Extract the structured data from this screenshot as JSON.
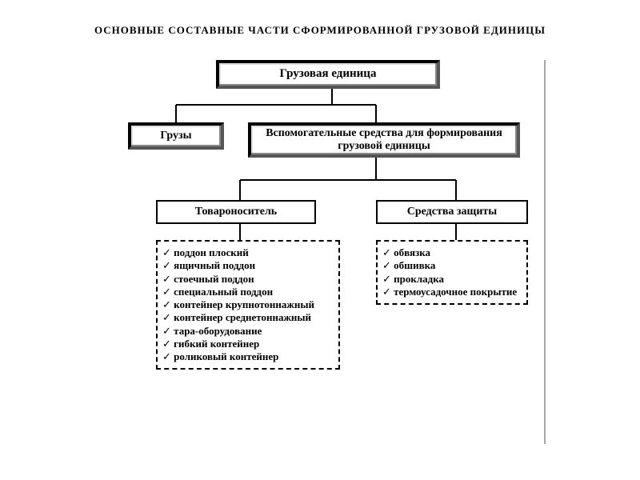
{
  "title": "ОСНОВНЫЕ  СОСТАВНЫЕ   ЧАСТИ  СФОРМИРОВАННОЙ  ГРУЗОВОЙ  ЕДИНИЦЫ",
  "root": {
    "label": "Грузовая единица"
  },
  "level2": {
    "left": {
      "label": "Грузы"
    },
    "right": {
      "label": "Вспомогательные средства для формирования грузовой единицы"
    }
  },
  "level3": {
    "left": {
      "label": "Товароноситель"
    },
    "right": {
      "label": "Средства защиты"
    }
  },
  "lists": {
    "carrier": [
      "поддон плоский",
      "ящичный поддон",
      "стоечный поддон",
      "специальный поддон",
      "контейнер крупнотоннажный",
      "контейнер среднетоннажный",
      "тара-оборудование",
      "гибкий контейнер",
      "роликовый контейнер"
    ],
    "protection": [
      "обвязка",
      "обшивка",
      "прокладка",
      "термоусадочное покрытие"
    ]
  },
  "style": {
    "root_fontsize": 15,
    "node_fontsize": 14,
    "list_fontsize": 13,
    "colors": {
      "bg": "#ffffff",
      "line": "#000000",
      "bevel_dark": "#555555",
      "bevel_inset": "#888888"
    },
    "diagram_type": "tree"
  }
}
